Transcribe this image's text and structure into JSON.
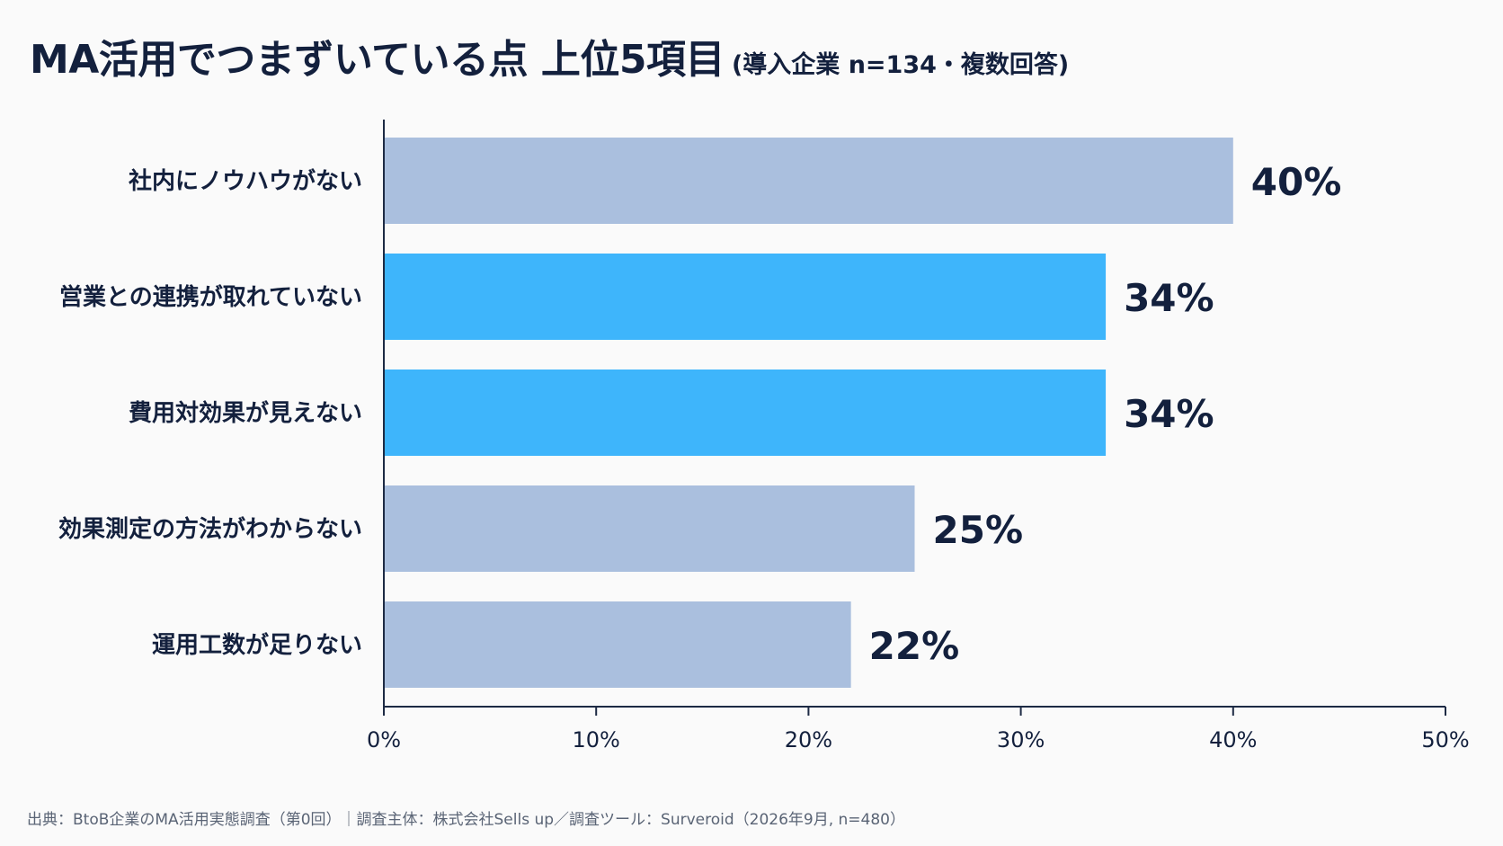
{
  "title": "MA活用でつまずいている点 上位5項目",
  "subtitle": "(導入企業 n=134・複数回答)",
  "footer": "出典：BtoB企業のMA活用実態調査（第0回）｜調査主体：株式会社Sells up／調査ツール：Surveroid（2026年9月, n=480）",
  "colors": {
    "muted_bar": "#aabfde",
    "highlight_bar": "#3eb5fb",
    "text": "#13203d",
    "axis": "#1d2a44"
  },
  "chart_data": {
    "type": "bar",
    "orientation": "horizontal",
    "categories": [
      "社内にノウハウがない",
      "営業との連携が取れていない",
      "費用対効果が見えない",
      "効果測定の方法がわからない",
      "運用工数が足りない"
    ],
    "values": [
      40,
      34,
      34,
      25,
      22
    ],
    "value_labels": [
      "40%",
      "34%",
      "34%",
      "25%",
      "22%"
    ],
    "highlighted": [
      false,
      true,
      true,
      false,
      false
    ],
    "xlim": [
      0,
      50
    ],
    "xticks": [
      0,
      10,
      20,
      30,
      40,
      50
    ],
    "xtick_labels": [
      "0%",
      "10%",
      "20%",
      "30%",
      "40%",
      "50%"
    ],
    "grid": false,
    "legend": "none"
  }
}
